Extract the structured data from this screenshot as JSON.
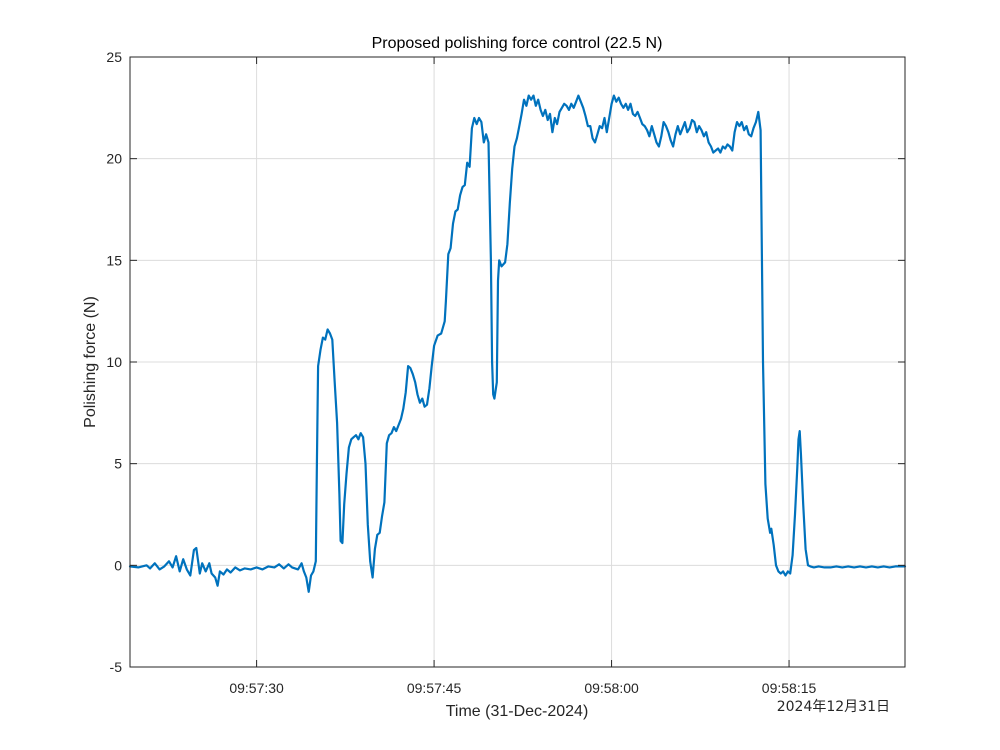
{
  "chart_data": {
    "type": "line",
    "title": "Proposed polishing force control (22.5 N)",
    "xlabel": "Time (31-Dec-2024)",
    "ylabel": "Polishing force (N)",
    "date_stamp": "2024年12月31日",
    "xlim_seconds_after_0957": [
      19.3,
      84.8
    ],
    "ylim": [
      -5,
      25
    ],
    "grid": true,
    "x_ticks": [
      {
        "t": 30,
        "label": "09:57:30"
      },
      {
        "t": 45,
        "label": "09:57:45"
      },
      {
        "t": 60,
        "label": "09:58:00"
      },
      {
        "t": 75,
        "label": "09:58:15"
      }
    ],
    "y_ticks": [
      {
        "v": -5,
        "label": "-5"
      },
      {
        "v": 0,
        "label": "0"
      },
      {
        "v": 5,
        "label": "5"
      },
      {
        "v": 10,
        "label": "10"
      },
      {
        "v": 15,
        "label": "15"
      },
      {
        "v": 20,
        "label": "20"
      },
      {
        "v": 25,
        "label": "25"
      }
    ],
    "series": [
      {
        "color": "#0072BD",
        "points": [
          [
            19.3,
            -0.05
          ],
          [
            20.0,
            -0.1
          ],
          [
            20.7,
            0.0
          ],
          [
            21.0,
            -0.15
          ],
          [
            21.4,
            0.1
          ],
          [
            21.8,
            -0.2
          ],
          [
            22.2,
            -0.05
          ],
          [
            22.6,
            0.2
          ],
          [
            22.9,
            -0.1
          ],
          [
            23.2,
            0.45
          ],
          [
            23.5,
            -0.3
          ],
          [
            23.8,
            0.3
          ],
          [
            24.1,
            -0.2
          ],
          [
            24.4,
            -0.5
          ],
          [
            24.7,
            0.75
          ],
          [
            24.9,
            0.85
          ],
          [
            25.2,
            -0.4
          ],
          [
            25.4,
            0.1
          ],
          [
            25.7,
            -0.3
          ],
          [
            26.0,
            0.1
          ],
          [
            26.2,
            -0.4
          ],
          [
            26.5,
            -0.6
          ],
          [
            26.7,
            -1.0
          ],
          [
            26.9,
            -0.3
          ],
          [
            27.2,
            -0.45
          ],
          [
            27.5,
            -0.2
          ],
          [
            27.8,
            -0.35
          ],
          [
            28.2,
            -0.1
          ],
          [
            28.6,
            -0.25
          ],
          [
            29.0,
            -0.15
          ],
          [
            29.5,
            -0.2
          ],
          [
            30.0,
            -0.1
          ],
          [
            30.5,
            -0.2
          ],
          [
            31.0,
            -0.05
          ],
          [
            31.5,
            -0.1
          ],
          [
            31.9,
            0.05
          ],
          [
            32.3,
            -0.15
          ],
          [
            32.7,
            0.05
          ],
          [
            33.0,
            -0.1
          ],
          [
            33.5,
            -0.2
          ],
          [
            33.8,
            0.1
          ],
          [
            34.0,
            -0.3
          ],
          [
            34.2,
            -0.6
          ],
          [
            34.4,
            -1.3
          ],
          [
            34.6,
            -0.5
          ],
          [
            34.8,
            -0.3
          ],
          [
            35.0,
            0.2
          ],
          [
            35.1,
            5.0
          ],
          [
            35.2,
            9.8
          ],
          [
            35.4,
            10.6
          ],
          [
            35.6,
            11.2
          ],
          [
            35.8,
            11.1
          ],
          [
            36.0,
            11.6
          ],
          [
            36.2,
            11.4
          ],
          [
            36.4,
            11.1
          ],
          [
            36.6,
            9.0
          ],
          [
            36.8,
            7.0
          ],
          [
            37.0,
            3.5
          ],
          [
            37.1,
            1.2
          ],
          [
            37.25,
            1.1
          ],
          [
            37.4,
            3.0
          ],
          [
            37.6,
            4.5
          ],
          [
            37.8,
            5.8
          ],
          [
            38.0,
            6.2
          ],
          [
            38.2,
            6.3
          ],
          [
            38.4,
            6.4
          ],
          [
            38.6,
            6.2
          ],
          [
            38.8,
            6.5
          ],
          [
            39.0,
            6.3
          ],
          [
            39.2,
            5.0
          ],
          [
            39.4,
            2.0
          ],
          [
            39.6,
            0.2
          ],
          [
            39.8,
            -0.6
          ],
          [
            40.0,
            0.8
          ],
          [
            40.2,
            1.5
          ],
          [
            40.4,
            1.6
          ],
          [
            40.6,
            2.4
          ],
          [
            40.8,
            3.1
          ],
          [
            41.0,
            6.0
          ],
          [
            41.2,
            6.4
          ],
          [
            41.4,
            6.5
          ],
          [
            41.6,
            6.8
          ],
          [
            41.8,
            6.6
          ],
          [
            42.0,
            6.9
          ],
          [
            42.2,
            7.2
          ],
          [
            42.4,
            7.7
          ],
          [
            42.6,
            8.5
          ],
          [
            42.8,
            9.8
          ],
          [
            43.0,
            9.7
          ],
          [
            43.2,
            9.4
          ],
          [
            43.4,
            9.0
          ],
          [
            43.6,
            8.4
          ],
          [
            43.8,
            8.0
          ],
          [
            44.0,
            8.2
          ],
          [
            44.2,
            7.8
          ],
          [
            44.4,
            7.9
          ],
          [
            44.6,
            8.7
          ],
          [
            44.8,
            9.8
          ],
          [
            45.0,
            10.8
          ],
          [
            45.3,
            11.3
          ],
          [
            45.6,
            11.4
          ],
          [
            45.9,
            12.0
          ],
          [
            46.0,
            13.0
          ],
          [
            46.2,
            15.3
          ],
          [
            46.4,
            15.6
          ],
          [
            46.6,
            16.8
          ],
          [
            46.8,
            17.4
          ],
          [
            47.0,
            17.5
          ],
          [
            47.2,
            18.2
          ],
          [
            47.4,
            18.6
          ],
          [
            47.6,
            18.7
          ],
          [
            47.8,
            19.8
          ],
          [
            48.0,
            19.6
          ],
          [
            48.2,
            21.5
          ],
          [
            48.4,
            22.0
          ],
          [
            48.6,
            21.7
          ],
          [
            48.8,
            22.0
          ],
          [
            49.0,
            21.8
          ],
          [
            49.2,
            20.8
          ],
          [
            49.4,
            21.2
          ],
          [
            49.6,
            20.8
          ],
          [
            49.8,
            15.0
          ],
          [
            49.9,
            10.0
          ],
          [
            50.0,
            8.4
          ],
          [
            50.1,
            8.2
          ],
          [
            50.3,
            9.0
          ],
          [
            50.4,
            14.0
          ],
          [
            50.5,
            15.0
          ],
          [
            50.7,
            14.7
          ],
          [
            51.0,
            14.9
          ],
          [
            51.2,
            15.8
          ],
          [
            51.4,
            17.8
          ],
          [
            51.6,
            19.5
          ],
          [
            51.8,
            20.6
          ],
          [
            52.0,
            21.0
          ],
          [
            52.2,
            21.6
          ],
          [
            52.4,
            22.2
          ],
          [
            52.6,
            22.9
          ],
          [
            52.8,
            22.6
          ],
          [
            53.0,
            23.1
          ],
          [
            53.2,
            22.9
          ],
          [
            53.4,
            23.1
          ],
          [
            53.6,
            22.6
          ],
          [
            53.8,
            22.9
          ],
          [
            54.0,
            22.4
          ],
          [
            54.2,
            22.1
          ],
          [
            54.4,
            22.4
          ],
          [
            54.6,
            21.9
          ],
          [
            54.8,
            22.2
          ],
          [
            55.0,
            21.3
          ],
          [
            55.2,
            22.0
          ],
          [
            55.4,
            21.7
          ],
          [
            55.6,
            22.3
          ],
          [
            55.8,
            22.5
          ],
          [
            56.0,
            22.7
          ],
          [
            56.2,
            22.6
          ],
          [
            56.4,
            22.4
          ],
          [
            56.6,
            22.7
          ],
          [
            56.8,
            22.5
          ],
          [
            57.0,
            22.8
          ],
          [
            57.2,
            23.1
          ],
          [
            57.4,
            22.8
          ],
          [
            57.6,
            22.5
          ],
          [
            57.8,
            22.1
          ],
          [
            58.0,
            21.6
          ],
          [
            58.2,
            21.6
          ],
          [
            58.4,
            21.0
          ],
          [
            58.6,
            20.8
          ],
          [
            58.8,
            21.2
          ],
          [
            59.0,
            21.6
          ],
          [
            59.2,
            21.5
          ],
          [
            59.4,
            22.0
          ],
          [
            59.6,
            21.3
          ],
          [
            59.8,
            22.0
          ],
          [
            60.0,
            22.7
          ],
          [
            60.2,
            23.1
          ],
          [
            60.4,
            22.8
          ],
          [
            60.6,
            23.0
          ],
          [
            60.8,
            22.7
          ],
          [
            61.0,
            22.5
          ],
          [
            61.2,
            22.7
          ],
          [
            61.4,
            22.4
          ],
          [
            61.6,
            22.7
          ],
          [
            61.8,
            22.2
          ],
          [
            62.0,
            22.1
          ],
          [
            62.2,
            22.3
          ],
          [
            62.4,
            22.0
          ],
          [
            62.6,
            21.7
          ],
          [
            62.8,
            21.6
          ],
          [
            63.0,
            21.4
          ],
          [
            63.2,
            21.1
          ],
          [
            63.4,
            21.6
          ],
          [
            63.6,
            21.2
          ],
          [
            63.8,
            20.8
          ],
          [
            64.0,
            20.6
          ],
          [
            64.2,
            21.1
          ],
          [
            64.4,
            21.8
          ],
          [
            64.6,
            21.6
          ],
          [
            64.8,
            21.3
          ],
          [
            65.0,
            20.9
          ],
          [
            65.2,
            20.6
          ],
          [
            65.4,
            21.2
          ],
          [
            65.6,
            21.6
          ],
          [
            65.8,
            21.2
          ],
          [
            66.0,
            21.5
          ],
          [
            66.2,
            21.8
          ],
          [
            66.4,
            21.3
          ],
          [
            66.6,
            21.5
          ],
          [
            66.8,
            21.9
          ],
          [
            67.0,
            21.8
          ],
          [
            67.2,
            21.3
          ],
          [
            67.4,
            21.6
          ],
          [
            67.6,
            21.4
          ],
          [
            67.8,
            21.1
          ],
          [
            68.0,
            21.3
          ],
          [
            68.2,
            20.8
          ],
          [
            68.4,
            20.6
          ],
          [
            68.6,
            20.3
          ],
          [
            68.8,
            20.4
          ],
          [
            69.0,
            20.5
          ],
          [
            69.2,
            20.3
          ],
          [
            69.4,
            20.6
          ],
          [
            69.6,
            20.5
          ],
          [
            69.8,
            20.7
          ],
          [
            70.0,
            20.6
          ],
          [
            70.2,
            20.4
          ],
          [
            70.4,
            21.3
          ],
          [
            70.6,
            21.8
          ],
          [
            70.8,
            21.6
          ],
          [
            71.0,
            21.8
          ],
          [
            71.2,
            21.4
          ],
          [
            71.4,
            21.6
          ],
          [
            71.6,
            21.2
          ],
          [
            71.8,
            21.1
          ],
          [
            72.0,
            21.5
          ],
          [
            72.2,
            21.8
          ],
          [
            72.4,
            22.3
          ],
          [
            72.6,
            21.4
          ],
          [
            72.8,
            10.0
          ],
          [
            73.0,
            4.0
          ],
          [
            73.2,
            2.3
          ],
          [
            73.4,
            1.6
          ],
          [
            73.5,
            1.8
          ],
          [
            73.7,
            1.0
          ],
          [
            73.9,
            0.0
          ],
          [
            74.1,
            -0.3
          ],
          [
            74.3,
            -0.4
          ],
          [
            74.5,
            -0.3
          ],
          [
            74.7,
            -0.5
          ],
          [
            74.9,
            -0.3
          ],
          [
            75.1,
            -0.4
          ],
          [
            75.3,
            0.5
          ],
          [
            75.5,
            2.5
          ],
          [
            75.7,
            4.8
          ],
          [
            75.8,
            6.2
          ],
          [
            75.9,
            6.6
          ],
          [
            76.0,
            5.5
          ],
          [
            76.2,
            3.0
          ],
          [
            76.4,
            0.8
          ],
          [
            76.6,
            0.0
          ],
          [
            76.8,
            -0.05
          ],
          [
            77.1,
            -0.1
          ],
          [
            77.5,
            -0.05
          ],
          [
            78.0,
            -0.1
          ],
          [
            78.5,
            -0.1
          ],
          [
            79.0,
            -0.05
          ],
          [
            79.5,
            -0.1
          ],
          [
            80.0,
            -0.05
          ],
          [
            80.5,
            -0.1
          ],
          [
            81.0,
            -0.05
          ],
          [
            81.5,
            -0.1
          ],
          [
            82.0,
            -0.05
          ],
          [
            82.5,
            -0.1
          ],
          [
            83.0,
            -0.05
          ],
          [
            83.5,
            -0.1
          ],
          [
            84.0,
            -0.05
          ],
          [
            84.8,
            -0.05
          ]
        ]
      }
    ]
  }
}
